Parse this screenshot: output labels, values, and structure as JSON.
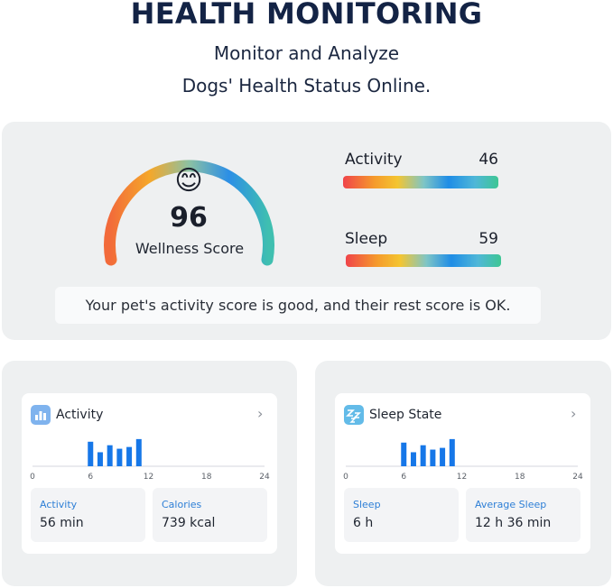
{
  "header": {
    "title": "HEALTH MONITORING",
    "subtitle_line1": "Monitor and Analyze",
    "subtitle_line2": "Dogs' Health Status Online."
  },
  "wellness": {
    "emoji": "😊",
    "score": "96",
    "label": "Wellness Score",
    "gauge_fraction": 0.96
  },
  "metrics": {
    "activity": {
      "label": "Activity",
      "value": "46"
    },
    "sleep": {
      "label": "Sleep",
      "value": "59"
    }
  },
  "message": "Your pet's activity score is good, and their rest score is OK.",
  "cards": {
    "activity": {
      "title": "Activity",
      "icon": "bar-chart-icon",
      "stats": [
        {
          "label": "Activity",
          "value": "56 min"
        },
        {
          "label": "Calories",
          "value": "739 kcal"
        }
      ]
    },
    "sleep": {
      "title": "Sleep State",
      "icon": "zzz-icon",
      "stats": [
        {
          "label": "Sleep",
          "value": "6 h"
        },
        {
          "label": "Average Sleep",
          "value": "12 h 36 min"
        }
      ]
    }
  },
  "chart_data": [
    {
      "type": "bar",
      "x": [
        6,
        7,
        8,
        9,
        10,
        11
      ],
      "values": [
        28,
        16,
        24,
        20,
        22,
        31
      ],
      "xticks": [
        "0",
        "6",
        "12",
        "18",
        "24"
      ],
      "xlim": [
        0,
        24
      ],
      "ylim": [
        0,
        35
      ],
      "color": "#1677e8"
    },
    {
      "type": "bar",
      "x": [
        6,
        7,
        8,
        9,
        10,
        11
      ],
      "values": [
        27,
        16,
        24,
        19,
        21,
        31
      ],
      "xticks": [
        "0",
        "6",
        "12",
        "18",
        "24"
      ],
      "xlim": [
        0,
        24
      ],
      "ylim": [
        0,
        35
      ],
      "color": "#1677e8"
    }
  ],
  "colors": {
    "title": "#132345",
    "panel": "#eef0f1",
    "accent": "#1677e8",
    "stat_label": "#2e7fd6"
  }
}
